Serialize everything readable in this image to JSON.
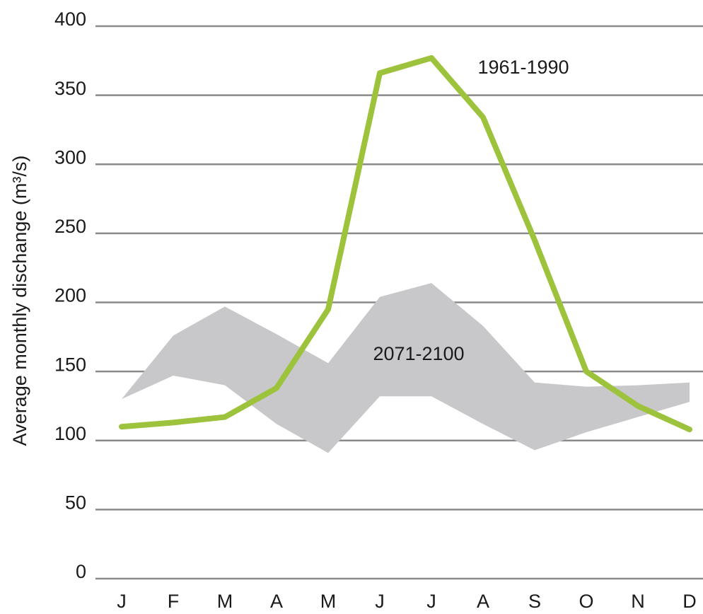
{
  "chart_data": {
    "type": "line",
    "y_label": "Average monthly dischange (m³/s)",
    "categories": [
      "J",
      "F",
      "M",
      "A",
      "M",
      "J",
      "J",
      "A",
      "S",
      "O",
      "N",
      "D"
    ],
    "series": [
      {
        "name": "2071-2100",
        "color": "#c8c8ca",
        "upper": [
          130,
          176,
          197,
          177,
          156,
          204,
          214,
          183,
          142,
          139,
          140,
          142
        ],
        "lower": [
          130,
          147,
          140,
          112,
          91,
          132,
          132,
          112,
          93,
          106,
          117,
          128
        ]
      },
      {
        "name": "1961-1990",
        "color": "#9dc23b",
        "values": [
          110,
          113,
          117,
          138,
          195,
          366,
          377,
          334,
          245,
          150,
          125,
          108
        ]
      }
    ],
    "ylim": [
      0,
      400
    ],
    "yticks": [
      0,
      50,
      100,
      150,
      200,
      250,
      300,
      350,
      400
    ],
    "grid": true
  }
}
